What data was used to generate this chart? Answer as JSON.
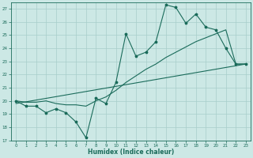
{
  "xlabel": "Humidex (Indice chaleur)",
  "xlim": [
    -0.5,
    23.5
  ],
  "ylim": [
    17,
    27.5
  ],
  "yticks": [
    17,
    18,
    19,
    20,
    21,
    22,
    23,
    24,
    25,
    26,
    27
  ],
  "xticks": [
    0,
    1,
    2,
    3,
    4,
    5,
    6,
    7,
    8,
    9,
    10,
    11,
    12,
    13,
    14,
    15,
    16,
    17,
    18,
    19,
    20,
    21,
    22,
    23
  ],
  "bg_color": "#cce8e5",
  "grid_color": "#a8ceca",
  "line_color": "#1a6b5a",
  "line1_x": [
    0,
    1,
    2,
    3,
    4,
    5,
    6,
    7,
    8,
    9,
    10,
    11,
    12,
    13,
    14,
    15,
    16,
    17,
    18,
    19,
    20,
    21,
    22,
    23
  ],
  "line1_y": [
    20.0,
    19.6,
    19.6,
    19.1,
    19.4,
    19.1,
    18.4,
    17.2,
    20.2,
    19.8,
    21.4,
    25.1,
    23.4,
    23.7,
    24.5,
    27.3,
    27.1,
    25.9,
    26.6,
    25.6,
    25.4,
    24.0,
    22.8,
    22.8
  ],
  "line2_x": [
    0,
    1,
    2,
    3,
    4,
    5,
    6,
    7,
    8,
    9,
    10,
    11,
    12,
    13,
    14,
    15,
    16,
    17,
    18,
    19,
    20,
    21,
    22,
    23
  ],
  "line2_y": [
    20.0,
    19.9,
    19.9,
    20.0,
    19.8,
    19.7,
    19.7,
    19.6,
    20.0,
    20.3,
    20.8,
    21.4,
    21.9,
    22.4,
    22.8,
    23.3,
    23.7,
    24.1,
    24.5,
    24.8,
    25.1,
    25.4,
    22.8,
    22.8
  ],
  "line3_x": [
    0,
    23
  ],
  "line3_y": [
    19.8,
    22.8
  ]
}
